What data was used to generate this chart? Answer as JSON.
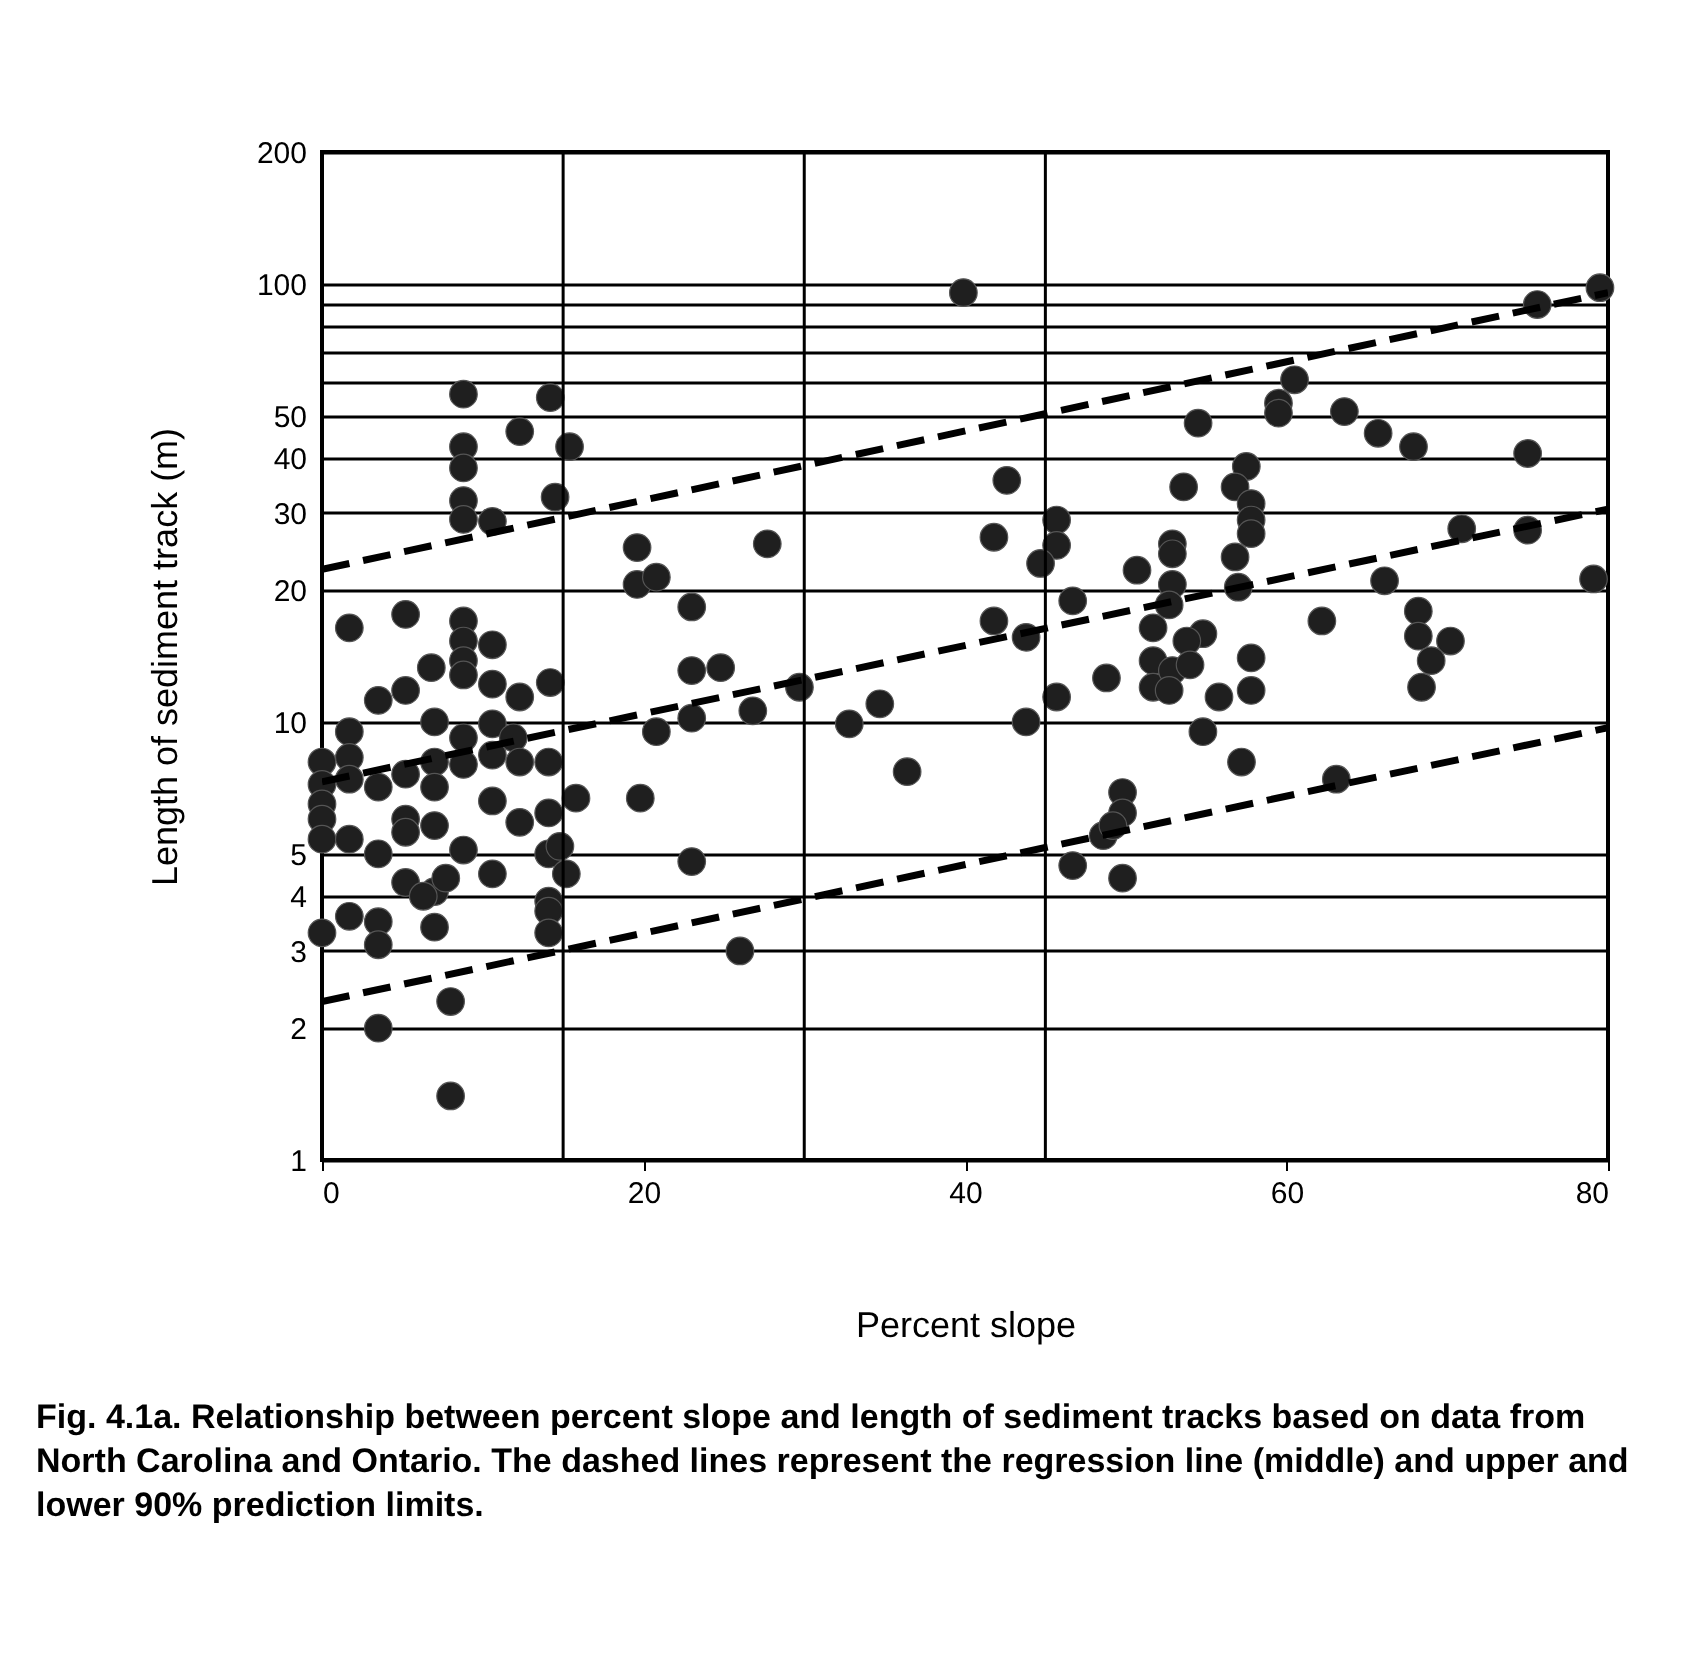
{
  "chart_data": {
    "type": "scatter",
    "xlabel": "Percent slope",
    "ylabel": "Length of sediment track (m)",
    "annotations": [
      "Fig. 4.1a. Relationship between percent slope and length of sediment tracks based on data from North Carolina and Ontario. The dashed lines represent the regression line (middle) and upper and lower 90% prediction limits."
    ],
    "xlim": [
      0,
      80
    ],
    "xticks": [
      0,
      20,
      40,
      60,
      80
    ],
    "ylim": [
      1,
      200
    ],
    "yticks": [
      1,
      2,
      3,
      4,
      5,
      10,
      20,
      30,
      40,
      50,
      {
        "value": 60,
        "label": null
      },
      {
        "value": 70,
        "label": null
      },
      {
        "value": 80,
        "label": null
      },
      {
        "value": 90,
        "label": null
      },
      100,
      200
    ],
    "log": true,
    "grid": "y",
    "ref_lines": [
      {
        "axis": "x",
        "value": 15,
        "color": "#000000"
      },
      {
        "axis": "x",
        "value": 30,
        "color": "#000000"
      },
      {
        "axis": "x",
        "value": 45,
        "color": "#000000"
      }
    ],
    "series": [
      {
        "color": "#1f1f1f",
        "marker": "circle",
        "x": [
          8.8,
          14.2,
          12.3,
          8.8,
          15.4,
          8.8,
          8.8,
          14.5,
          8.8,
          10.6,
          19.6,
          19.6,
          20.8,
          23.0,
          1.7,
          5.2,
          8.8,
          8.8,
          10.6,
          6.8,
          8.8,
          8.8,
          23.0,
          24.8,
          5.2,
          3.5,
          10.6,
          12.3,
          14.2,
          7.0,
          10.6,
          1.7,
          8.8,
          11.9,
          0,
          1.7,
          1.7,
          0,
          0,
          0,
          0,
          3.5,
          5.2,
          7.0,
          7.0,
          8.8,
          10.6,
          12.3,
          14.1,
          10.6,
          12.3,
          14.1,
          15.8,
          19.8,
          5.2,
          5.2,
          7.0,
          1.7,
          3.5,
          8.8,
          14.1,
          14.8,
          15.2,
          10.6,
          5.2,
          7.0,
          7.7,
          6.3,
          14.1,
          14.1,
          14.1,
          0,
          1.7,
          3.5,
          3.5,
          7.0,
          8.0,
          3.5,
          8.0,
          23.0,
          20.8,
          23.0,
          39.9,
          42.6,
          27.7,
          41.8,
          45.7,
          45.7,
          44.7,
          46.7,
          50.7,
          41.8,
          43.8,
          48.8,
          45.7,
          29.7,
          26.8,
          51.7,
          51.7,
          51.7,
          32.8,
          34.7,
          43.8,
          36.4,
          49.8,
          49.8,
          48.6,
          49.2,
          46.7,
          49.8,
          26.0,
          79.5,
          75.6,
          60.5,
          59.5,
          59.5,
          63.6,
          65.7,
          67.9,
          75.0,
          54.5,
          57.5,
          53.6,
          56.8,
          57.8,
          57.8,
          57.8,
          52.9,
          52.9,
          56.8,
          70.9,
          75.0,
          52.9,
          52.7,
          57.0,
          66.1,
          79.1,
          62.2,
          68.2,
          68.2,
          70.2,
          69.0,
          68.4,
          57.8,
          57.8,
          55.8,
          54.8,
          53.8,
          52.9,
          52.7,
          54.0,
          54.8,
          57.2,
          63.1
        ],
        "values": [
          56,
          55,
          46,
          42.5,
          42.5,
          38,
          32,
          32.6,
          29,
          28.7,
          25,
          20.6,
          21.4,
          18.3,
          16.4,
          17.6,
          17,
          15.3,
          15,
          13.3,
          13.8,
          12.8,
          13.1,
          13.3,
          11.8,
          11.2,
          12.2,
          11.4,
          12.3,
          10,
          9.9,
          9.5,
          9.2,
          9.2,
          8.1,
          8.3,
          7.4,
          7.2,
          6.5,
          6,
          5.4,
          7.1,
          7.6,
          8.1,
          7.1,
          8,
          8.4,
          8.1,
          8.1,
          6.6,
          5.9,
          6.2,
          6.7,
          6.7,
          6,
          5.6,
          5.8,
          5.4,
          5,
          5.1,
          5,
          5.2,
          4.5,
          4.5,
          4.3,
          4.1,
          4.4,
          4.0,
          3.9,
          3.7,
          3.3,
          3.3,
          3.6,
          3.5,
          3.1,
          3.4,
          2.3,
          2.0,
          1.4,
          4.8,
          9.5,
          10.2,
          95.5,
          35.6,
          25.5,
          26.4,
          28.9,
          25.3,
          23,
          18.9,
          22.2,
          17,
          15.6,
          12.6,
          11.4,
          12,
          10.6,
          16.4,
          13.8,
          12.0,
          9.9,
          11,
          10,
          7.7,
          6.9,
          6.2,
          5.5,
          5.8,
          4.7,
          4.4,
          3.0,
          98,
          89.7,
          60.4,
          53.4,
          50.7,
          51.1,
          45.6,
          42.5,
          41,
          48.1,
          38.3,
          34.4,
          34.4,
          31.5,
          28.9,
          26.9,
          25.5,
          24.2,
          23.8,
          27.6,
          27.4,
          20.6,
          18.5,
          20.3,
          21.0,
          21.2,
          17.0,
          17.9,
          15.7,
          15.3,
          13.8,
          12.0,
          14.0,
          11.8,
          11.4,
          15.9,
          15.3,
          13.1,
          11.8,
          13.5,
          9.5,
          8.1,
          7.4
        ]
      },
      {
        "type": "line",
        "color": "#000000",
        "line_style": "dashed",
        "x": [
          0,
          80
        ],
        "values": [
          22.3,
          95.5
        ]
      },
      {
        "type": "line",
        "color": "#000000",
        "line_style": "dashed",
        "x": [
          0,
          80
        ],
        "values": [
          7.3,
          30.6
        ]
      },
      {
        "type": "line",
        "color": "#000000",
        "line_style": "dashed",
        "x": [
          0,
          80
        ],
        "values": [
          2.3,
          9.7
        ]
      }
    ]
  }
}
